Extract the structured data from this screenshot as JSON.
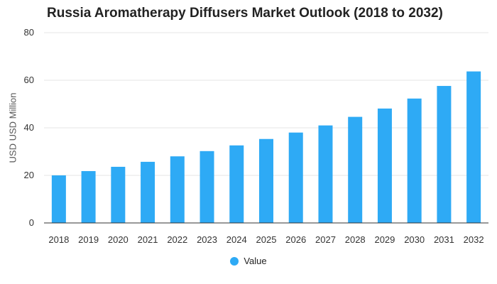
{
  "chart_data": {
    "type": "bar",
    "title": "Russia Aromatherapy Diffusers Market Outlook (2018 to 2032)",
    "xlabel": "",
    "ylabel": "USD USD Million",
    "categories": [
      "2018",
      "2019",
      "2020",
      "2021",
      "2022",
      "2023",
      "2024",
      "2025",
      "2026",
      "2027",
      "2028",
      "2029",
      "2030",
      "2031",
      "2032"
    ],
    "series": [
      {
        "name": "Value",
        "values": [
          20.0,
          21.8,
          23.6,
          25.7,
          28.0,
          30.2,
          32.6,
          35.3,
          38.0,
          41.0,
          44.6,
          48.1,
          52.3,
          57.6,
          63.7
        ]
      }
    ],
    "ylim": [
      0,
      80
    ],
    "yticks": [
      0,
      20,
      40,
      60,
      80
    ],
    "grid": true,
    "legend_position": "bottom-center",
    "bar_color": "#2eaaf5"
  }
}
